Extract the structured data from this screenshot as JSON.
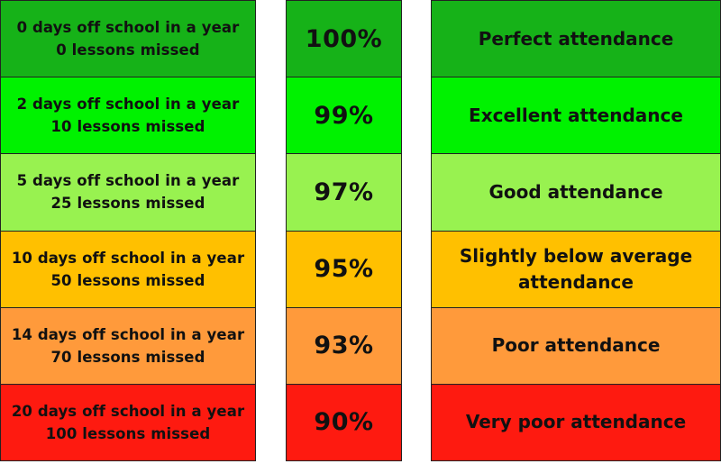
{
  "rows": [
    {
      "days_line": "0 days off school in a year",
      "lessons_line": "0 lessons missed",
      "percent": "100%",
      "label": "Perfect attendance",
      "color": "#16b218"
    },
    {
      "days_line": "2 days off school in a year",
      "lessons_line": "10 lessons missed",
      "percent": "99%",
      "label": "Excellent attendance",
      "color": "#00f200"
    },
    {
      "days_line": "5 days off school in a year",
      "lessons_line": "25 lessons missed",
      "percent": "97%",
      "label": "Good attendance",
      "color": "#98f250"
    },
    {
      "days_line": "10 days off school in a year",
      "lessons_line": "50 lessons missed",
      "percent": "95%",
      "label": "Slightly below average attendance",
      "color": "#ffc000"
    },
    {
      "days_line": "14 days off school in a year",
      "lessons_line": "70 lessons missed",
      "percent": "93%",
      "label": "Poor attendance",
      "color": "#ff9a3b"
    },
    {
      "days_line": "20 days off school in a year",
      "lessons_line": "100 lessons missed",
      "percent": "90%",
      "label": "Very poor attendance",
      "color": "#fe1a10"
    }
  ]
}
